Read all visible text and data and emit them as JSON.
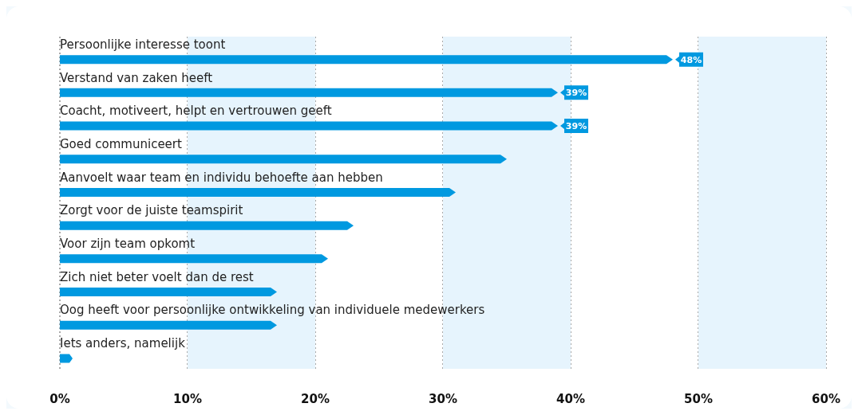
{
  "chart_data": {
    "type": "bar",
    "orientation": "horizontal",
    "categories": [
      "Persoonlijke interesse toont",
      "Verstand van zaken heeft",
      "Coacht, motiveert, helpt en vertrouwen geeft",
      "Goed communiceert",
      "Aanvoelt waar team en individu behoefte aan hebben",
      "Zorgt voor de juiste teamspirit",
      "Voor zijn team opkomt",
      "Zich niet beter voelt dan de rest",
      "Oog heeft voor persoonlijke ontwikkeling van individuele medewerkers",
      "Iets anders, namelijk"
    ],
    "values": [
      48,
      39,
      39,
      35,
      31,
      23,
      21,
      17,
      17,
      1
    ],
    "value_labels": [
      "48%",
      "39%",
      "39%",
      null,
      null,
      null,
      null,
      null,
      null,
      null
    ],
    "color": "#0099e0",
    "xlim": [
      0,
      60
    ],
    "xticks": [
      {
        "value": 0,
        "label": "0%"
      },
      {
        "value": 10,
        "label": "10%"
      },
      {
        "value": 20,
        "label": "20%"
      },
      {
        "value": 30,
        "label": "30%"
      },
      {
        "value": 40,
        "label": "40%"
      },
      {
        "value": 50,
        "label": "50%"
      },
      {
        "value": 60,
        "label": "60%"
      }
    ],
    "bands": [
      {
        "axis": "x",
        "from": 10,
        "to": 20,
        "color": "#e6f4fd"
      },
      {
        "axis": "x",
        "from": 30,
        "to": 40,
        "color": "#e6f4fd"
      },
      {
        "axis": "x",
        "from": 50,
        "to": 60,
        "color": "#e6f4fd"
      }
    ],
    "grid": "x"
  }
}
